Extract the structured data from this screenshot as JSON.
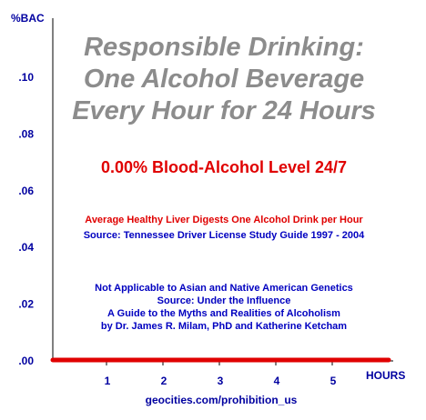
{
  "chart_data": {
    "type": "line",
    "title": "Responsible Drinking: One Alcohol Beverage Every Hour for 24 Hours",
    "title_lines": [
      "Responsible Drinking:",
      "One Alcohol Beverage",
      "Every Hour for 24 Hours"
    ],
    "ylabel": "%BAC",
    "xlabel": "HOURS",
    "y_ticks": [
      ".00",
      ".02",
      ".04",
      ".06",
      ".08",
      ".10"
    ],
    "y_tick_values": [
      0.0,
      0.02,
      0.04,
      0.06,
      0.08,
      0.1
    ],
    "x_ticks": [
      "1",
      "2",
      "3",
      "4",
      "5"
    ],
    "x_tick_values": [
      1,
      2,
      3,
      4,
      5
    ],
    "ylim": [
      0,
      0.1
    ],
    "xlim": [
      0,
      6
    ],
    "series": [
      {
        "x": [
          0,
          6
        ],
        "values": [
          0.0,
          0.0
        ],
        "color": "#e00000"
      }
    ],
    "grid": false,
    "annotations": {
      "bac_level": "0.00% Blood-Alcohol Level 24/7",
      "liver": "Average Healthy Liver Digests One Alcohol Drink per Hour",
      "source1": "Source: Tennessee Driver License Study Guide 1997 - 2004",
      "note_lines": [
        "Not Applicable to Asian and Native American Genetics",
        "Source: Under the Influence",
        "A Guide to the Myths and Realities of Alcoholism",
        "by Dr. James R. Milam, PhD and Katherine Ketcham"
      ]
    },
    "colors": {
      "axis": "#000000",
      "line": "#e00000",
      "labels": "#0000a0",
      "title": "#8c8c8c"
    }
  },
  "footer": "geocities.com/prohibition_us"
}
